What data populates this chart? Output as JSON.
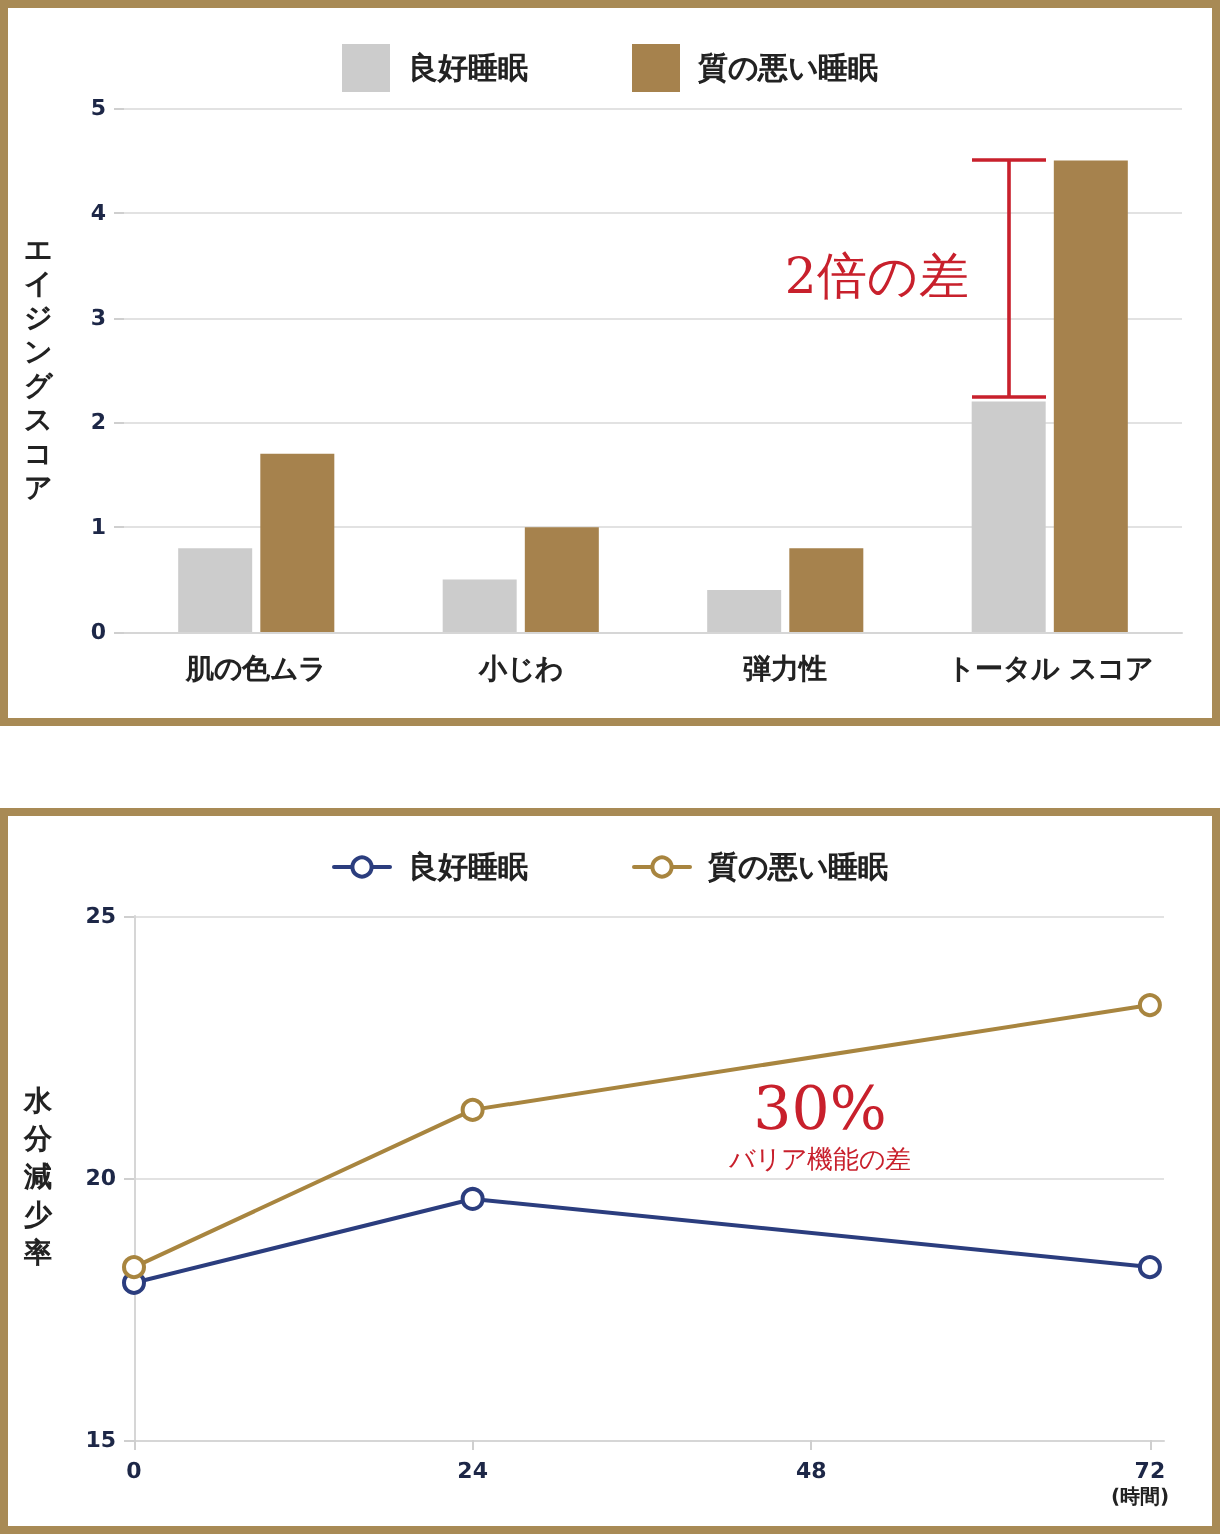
{
  "chart_data": [
    {
      "type": "bar",
      "ylabel": "エイジングスコア",
      "categories": [
        "肌の色ムラ",
        "小じわ",
        "弾力性",
        "トータル スコア"
      ],
      "series": [
        {
          "name": "良好睡眠",
          "color": "#cccccc",
          "values": [
            0.8,
            0.5,
            0.4,
            2.2
          ]
        },
        {
          "name": "質の悪い睡眠",
          "color": "#a6824d",
          "values": [
            1.7,
            1.0,
            0.8,
            4.5
          ]
        }
      ],
      "ylim": [
        0,
        5
      ],
      "yticks": [
        0,
        1,
        2,
        3,
        4,
        5
      ],
      "grid": "y",
      "legend": "top",
      "annotations": [
        {
          "text": "2倍の差",
          "x": "トータル スコア",
          "y": 3.4
        }
      ]
    },
    {
      "type": "line",
      "ylabel": "水分減少率",
      "xlabel": "(時間)",
      "x": [
        0,
        24,
        72
      ],
      "series": [
        {
          "name": "良好睡眠",
          "color": "#2b3d7e",
          "values": [
            18.0,
            19.6,
            18.3
          ]
        },
        {
          "name": "質の悪い睡眠",
          "color": "#a8853f",
          "values": [
            18.3,
            21.3,
            23.3
          ]
        }
      ],
      "xlim": [
        0,
        73
      ],
      "xticks": [
        0,
        24,
        48,
        72
      ],
      "ylim": [
        15,
        25
      ],
      "yticks": [
        15,
        20,
        25
      ],
      "grid": "y",
      "legend": "top",
      "marker": "circle",
      "annotations": [
        "30%",
        "バリア機能の差"
      ]
    }
  ]
}
